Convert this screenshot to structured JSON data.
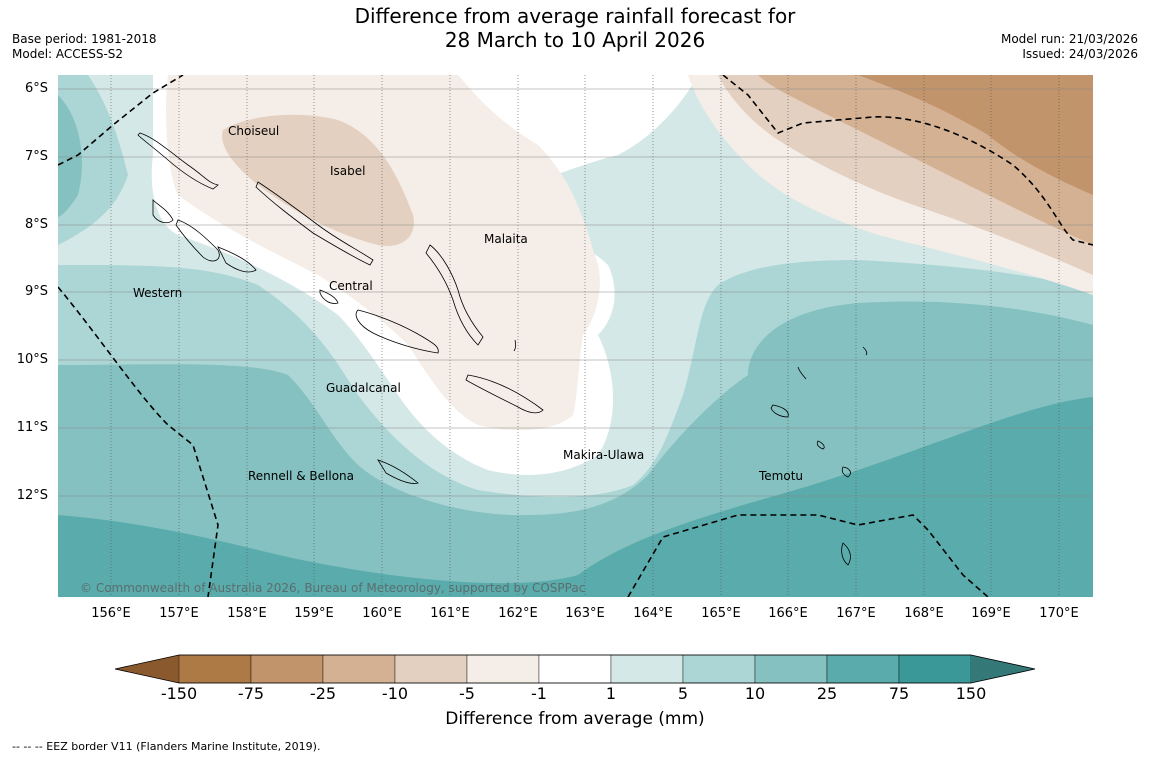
{
  "header": {
    "title_line1": "Difference from average rainfall forecast for",
    "title_line2": "28 March to 10 April 2026",
    "base_period": "Base period: 1981-2018",
    "model": "Model: ACCESS-S2",
    "model_run": "Model run: 21/03/2026",
    "issued": "Issued: 24/03/2026"
  },
  "map": {
    "lat_labels": [
      "6°S",
      "7°S",
      "8°S",
      "9°S",
      "10°S",
      "11°S",
      "12°S"
    ],
    "lon_labels": [
      "156°E",
      "157°E",
      "158°E",
      "159°E",
      "160°E",
      "161°E",
      "162°E",
      "163°E",
      "164°E",
      "165°E",
      "166°E",
      "167°E",
      "168°E",
      "169°E",
      "170°E"
    ],
    "province_labels": {
      "choiseul": "Choiseul",
      "isabel": "Isabel",
      "malaita": "Malaita",
      "western": "Western",
      "central": "Central",
      "guadalcanal": "Guadalcanal",
      "makira": "Makira-Ulawa",
      "rennell": "Rennell & Bellona",
      "temotu": "Temotu"
    },
    "copyright": "© Commonwealth of Australia 2026, Bureau of Meteorology, supported by COSPPac"
  },
  "colorbar": {
    "ticks": [
      "-150",
      "-75",
      "-25",
      "-10",
      "-5",
      "-1",
      "1",
      "5",
      "10",
      "25",
      "75",
      "150"
    ],
    "colors": [
      "#8a5a2e",
      "#ad7a45",
      "#c2946b",
      "#d4b192",
      "#e4d0c0",
      "#f5ede7",
      "#ffffff",
      "#d4e8e7",
      "#abd6d5",
      "#84c1c0",
      "#5aabab",
      "#3a9898",
      "#347877"
    ],
    "title": "Difference from average (mm)"
  },
  "footer": {
    "eez_note": "--  --  -- EEZ border V11 (Flanders Marine Institute, 2019)."
  }
}
